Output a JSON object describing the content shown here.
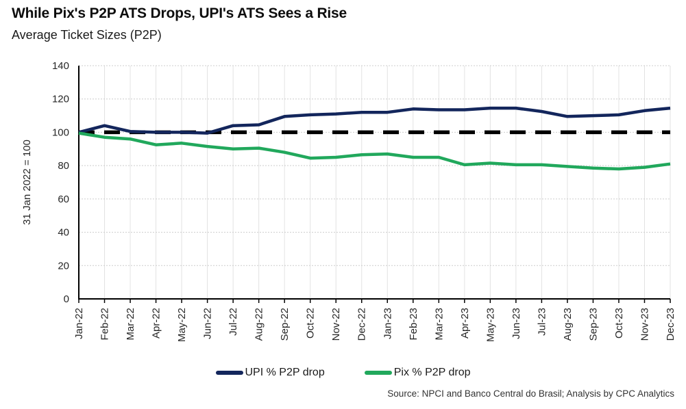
{
  "chart": {
    "title": "While Pix's P2P ATS Drops, UPI's ATS Sees a Rise",
    "subtitle": "Average Ticket Sizes (P2P)",
    "y_axis_label": "31 Jan 2022 = 100",
    "source": "Source: NPCI and Banco Central do Brasil; Analysis by CPC Analytics",
    "legend": [
      {
        "label": "UPI % P2P drop",
        "color": "#13265c"
      },
      {
        "label": "Pix % P2P drop",
        "color": "#21a85c"
      }
    ],
    "colors": {
      "upi_line": "#13265c",
      "pix_line": "#21a85c",
      "baseline": "#000000",
      "axis": "#000000",
      "grid_horizontal": "#cccccc",
      "grid_vertical": "#e2e2e2"
    }
  },
  "chart_data": {
    "type": "line",
    "title": "While Pix's P2P ATS Drops, UPI's ATS Sees a Rise",
    "subtitle": "Average Ticket Sizes (P2P)",
    "xlabel": "",
    "ylabel": "31 Jan 2022 = 100",
    "ylim": [
      0,
      140
    ],
    "ytick_step": 20,
    "grid": true,
    "legend_position": "bottom",
    "categories": [
      "Jan-22",
      "Feb-22",
      "Mar-22",
      "Apr-22",
      "May-22",
      "Jun-22",
      "Jul-22",
      "Aug-22",
      "Sep-22",
      "Oct-22",
      "Nov-22",
      "Dec-22",
      "Jan-23",
      "Feb-23",
      "Mar-23",
      "Apr-23",
      "May-23",
      "Jun-23",
      "Jul-23",
      "Aug-23",
      "Sep-23",
      "Oct-23",
      "Nov-23",
      "Dec-23"
    ],
    "series": [
      {
        "name": "UPI % P2P drop",
        "color": "#13265c",
        "values": [
          100,
          104,
          100.5,
          100,
          100,
          99.5,
          104,
          104.5,
          109.5,
          110.5,
          111,
          112,
          112,
          114,
          113.5,
          113.5,
          114.5,
          114.5,
          112.5,
          109.5,
          110,
          110.5,
          113,
          114.5
        ]
      },
      {
        "name": "Pix % P2P drop",
        "color": "#21a85c",
        "values": [
          99.5,
          97,
          96,
          92.5,
          93.5,
          91.5,
          90,
          90.5,
          88,
          84.5,
          85,
          86.5,
          87,
          85,
          85,
          80.5,
          81.5,
          80.5,
          80.5,
          79.5,
          78.5,
          78,
          79,
          81
        ]
      }
    ],
    "baseline": {
      "value": 100,
      "style": "dashed",
      "color": "#000000"
    }
  }
}
